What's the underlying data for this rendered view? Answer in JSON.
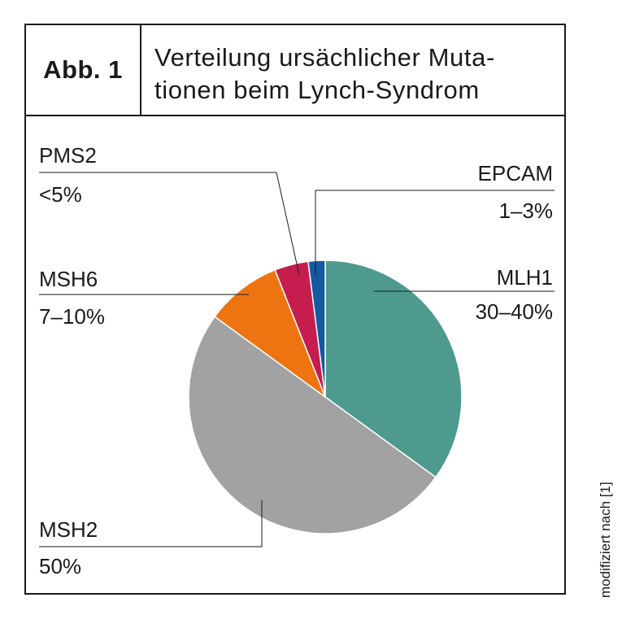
{
  "figure": {
    "label": "Abb. 1",
    "title_lines": [
      "Verteilung ursächlicher Muta-",
      "tionen beim Lynch-Syndrom"
    ],
    "source": "modifiziert nach [1]"
  },
  "chart_data": {
    "type": "pie",
    "title": "Verteilung ursächlicher Mutationen beim Lynch-Syndrom",
    "slices": [
      {
        "name": "MLH1",
        "label": "30–40%",
        "value": 35,
        "color": "#4e9a8e"
      },
      {
        "name": "MSH2",
        "label": "50%",
        "value": 50,
        "color": "#a2a2a2"
      },
      {
        "name": "MSH6",
        "label": "7–10%",
        "value": 9,
        "color": "#ee7411"
      },
      {
        "name": "PMS2",
        "label": "<5%",
        "value": 4,
        "color": "#c41d4e"
      },
      {
        "name": "EPCAM",
        "label": "1–3%",
        "value": 2,
        "color": "#135aa0"
      }
    ],
    "start": "top",
    "direction": "clockwise",
    "legend": "none"
  }
}
